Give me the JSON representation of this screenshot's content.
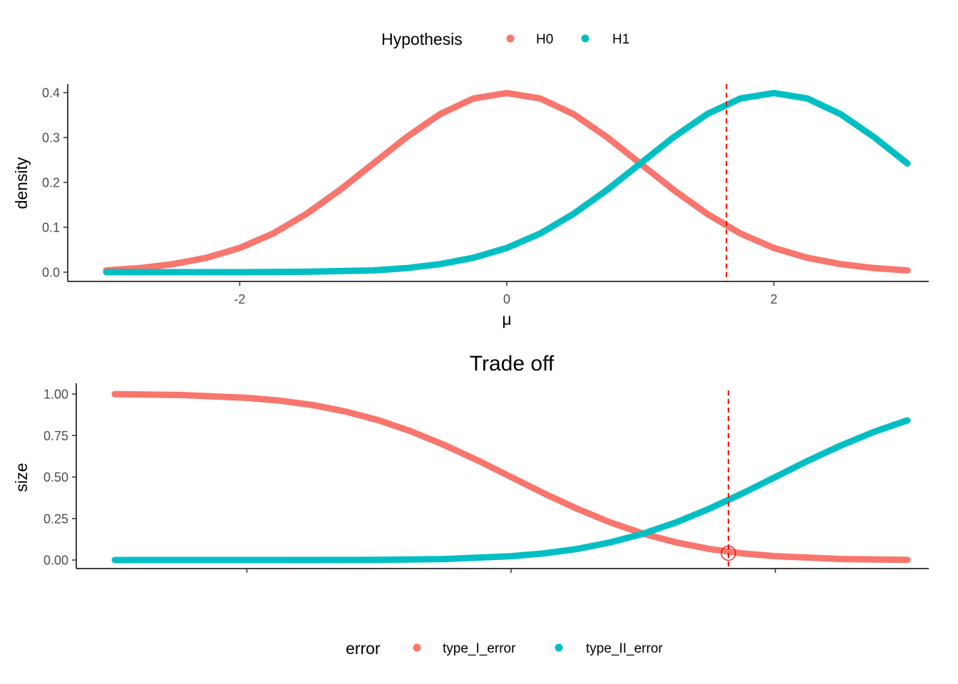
{
  "chart_data": [
    {
      "type": "line",
      "title": "",
      "xlabel": "μ",
      "ylabel": "density",
      "xlim": [
        -3,
        3
      ],
      "ylim": [
        0,
        0.4
      ],
      "x_ticks": [
        -2,
        0,
        2
      ],
      "x_tick_labels": [
        "-2",
        "0",
        "2"
      ],
      "y_ticks": [
        0,
        0.1,
        0.2,
        0.3,
        0.4
      ],
      "y_tick_labels": [
        "0.0",
        "0.1",
        "0.2",
        "0.3",
        "0.4"
      ],
      "vline": {
        "x": 1.645,
        "color": "#ff0000",
        "style": "dashed"
      },
      "legend": {
        "title": "Hypothesis",
        "position": "top"
      },
      "series": [
        {
          "name": "H0",
          "color": "#f8766d",
          "x": [
            -3,
            -2.75,
            -2.5,
            -2.25,
            -2,
            -1.75,
            -1.5,
            -1.25,
            -1,
            -0.75,
            -0.5,
            -0.25,
            0,
            0.25,
            0.5,
            0.75,
            1,
            1.25,
            1.5,
            1.75,
            2,
            2.25,
            2.5,
            2.75,
            3
          ],
          "y": [
            0.004,
            0.009,
            0.018,
            0.032,
            0.054,
            0.086,
            0.13,
            0.183,
            0.242,
            0.301,
            0.352,
            0.387,
            0.399,
            0.387,
            0.352,
            0.301,
            0.242,
            0.183,
            0.13,
            0.086,
            0.054,
            0.032,
            0.018,
            0.009,
            0.004
          ]
        },
        {
          "name": "H1",
          "color": "#00bfc4",
          "x": [
            -3,
            -2.5,
            -2,
            -1.5,
            -1,
            -0.75,
            -0.5,
            -0.25,
            0,
            0.25,
            0.5,
            0.75,
            1,
            1.25,
            1.5,
            1.75,
            2,
            2.25,
            2.5,
            2.75,
            3
          ],
          "y": [
            0.0,
            0.0,
            0.0,
            0.001,
            0.004,
            0.009,
            0.018,
            0.032,
            0.054,
            0.086,
            0.13,
            0.183,
            0.242,
            0.301,
            0.352,
            0.387,
            0.399,
            0.387,
            0.352,
            0.301,
            0.242
          ]
        }
      ]
    },
    {
      "type": "line",
      "title": "Trade off",
      "xlabel": "",
      "ylabel": "size",
      "xlim": [
        -3,
        3
      ],
      "ylim": [
        0,
        1
      ],
      "x_ticks": [
        -2,
        0,
        2
      ],
      "y_ticks": [
        0,
        0.25,
        0.5,
        0.75,
        1
      ],
      "y_tick_labels": [
        "0.00",
        "0.25",
        "0.50",
        "0.75",
        "1.00"
      ],
      "vline": {
        "x": 1.645,
        "color": "#ff0000",
        "style": "dashed"
      },
      "marker": {
        "x": 1.645,
        "y": 0.05,
        "color": "#ff0000",
        "shape": "open circle"
      },
      "legend": {
        "title": "error",
        "position": "bottom"
      },
      "series": [
        {
          "name": "type_I_error",
          "color": "#f8766d",
          "x": [
            -3,
            -2.5,
            -2,
            -1.75,
            -1.5,
            -1.25,
            -1,
            -0.75,
            -0.5,
            -0.25,
            0,
            0.25,
            0.5,
            0.75,
            1,
            1.25,
            1.5,
            1.75,
            2,
            2.5,
            3
          ],
          "y": [
            0.999,
            0.994,
            0.977,
            0.96,
            0.933,
            0.894,
            0.841,
            0.773,
            0.691,
            0.599,
            0.5,
            0.401,
            0.309,
            0.227,
            0.159,
            0.106,
            0.067,
            0.04,
            0.023,
            0.006,
            0.001
          ]
        },
        {
          "name": "type_II_error",
          "color": "#00bfc4",
          "x": [
            -3,
            -2,
            -1,
            -0.5,
            0,
            0.25,
            0.5,
            0.75,
            1,
            1.25,
            1.5,
            1.75,
            2,
            2.25,
            2.5,
            2.75,
            3
          ],
          "y": [
            0.0,
            0.0,
            0.001,
            0.006,
            0.023,
            0.04,
            0.067,
            0.106,
            0.159,
            0.227,
            0.309,
            0.401,
            0.5,
            0.599,
            0.691,
            0.773,
            0.841
          ]
        }
      ]
    }
  ]
}
